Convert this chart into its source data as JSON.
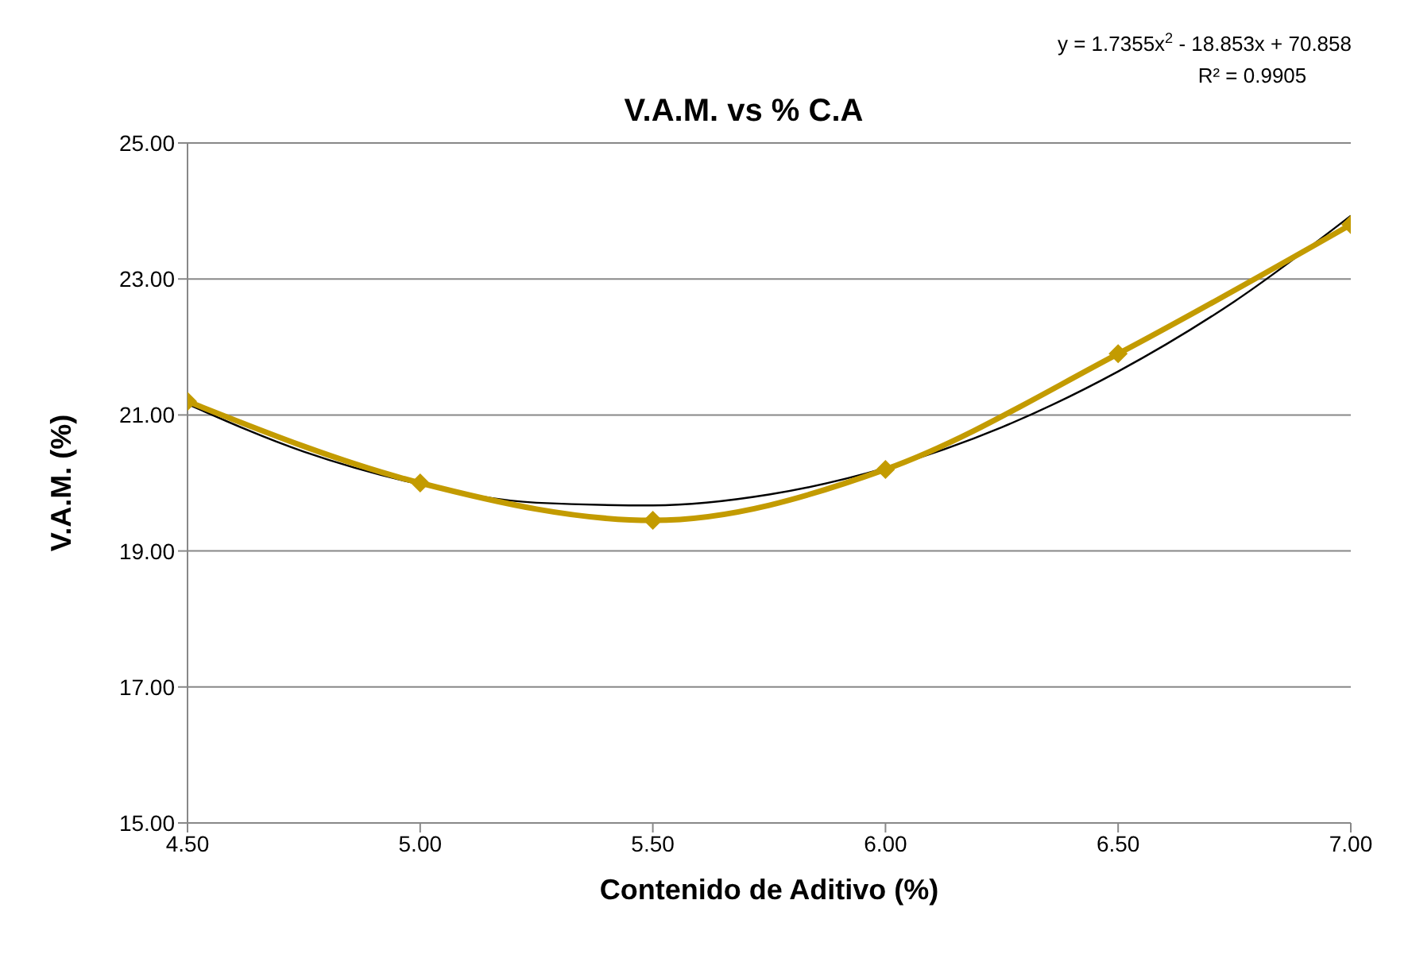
{
  "chart_data": {
    "type": "line",
    "title": "V.A.M. vs % C.A",
    "xlabel": "Contenido de Aditivo (%)",
    "ylabel": "V.A.M. (%)",
    "annotations": [
      "y = 1.7355x$^{2}$ - 18.853x + 70.858",
      "R² = 0.9905"
    ],
    "x": [
      4.5,
      5.0,
      5.5,
      6.0,
      6.5,
      7.0
    ],
    "series": [
      {
        "color": "#c39b00",
        "values": [
          21.2,
          20.0,
          19.45,
          20.2,
          21.9,
          23.8
        ],
        "marker": "diamond"
      },
      {
        "type": "line",
        "color": "#000000",
        "marker": "none",
        "x": [
          4.5,
          4.75,
          5.0,
          5.25,
          5.5,
          5.75,
          6.0,
          6.25,
          6.5,
          6.75,
          7.0
        ],
        "values": [
          21.16,
          20.46,
          19.98,
          19.71,
          19.67,
          19.83,
          20.22,
          20.82,
          21.64,
          22.67,
          23.93
        ]
      }
    ],
    "xlim": [
      4.5,
      7.0
    ],
    "xticks": [
      {
        "value": 4.5,
        "label": "4.50"
      },
      {
        "value": 5.0,
        "label": "5.00"
      },
      {
        "value": 5.5,
        "label": "5.50"
      },
      {
        "value": 6.0,
        "label": "6.00"
      },
      {
        "value": 6.5,
        "label": "6.50"
      },
      {
        "value": 7.0,
        "label": "7.00"
      }
    ],
    "ylim": [
      15,
      25
    ],
    "yticks": [
      {
        "value": 15,
        "label": "15.00"
      },
      {
        "value": 17,
        "label": "17.00"
      },
      {
        "value": 19,
        "label": "19.00"
      },
      {
        "value": 21,
        "label": "21.00"
      },
      {
        "value": 23,
        "label": "23.00"
      },
      {
        "value": 25,
        "label": "25.00"
      }
    ],
    "grid": "y"
  }
}
